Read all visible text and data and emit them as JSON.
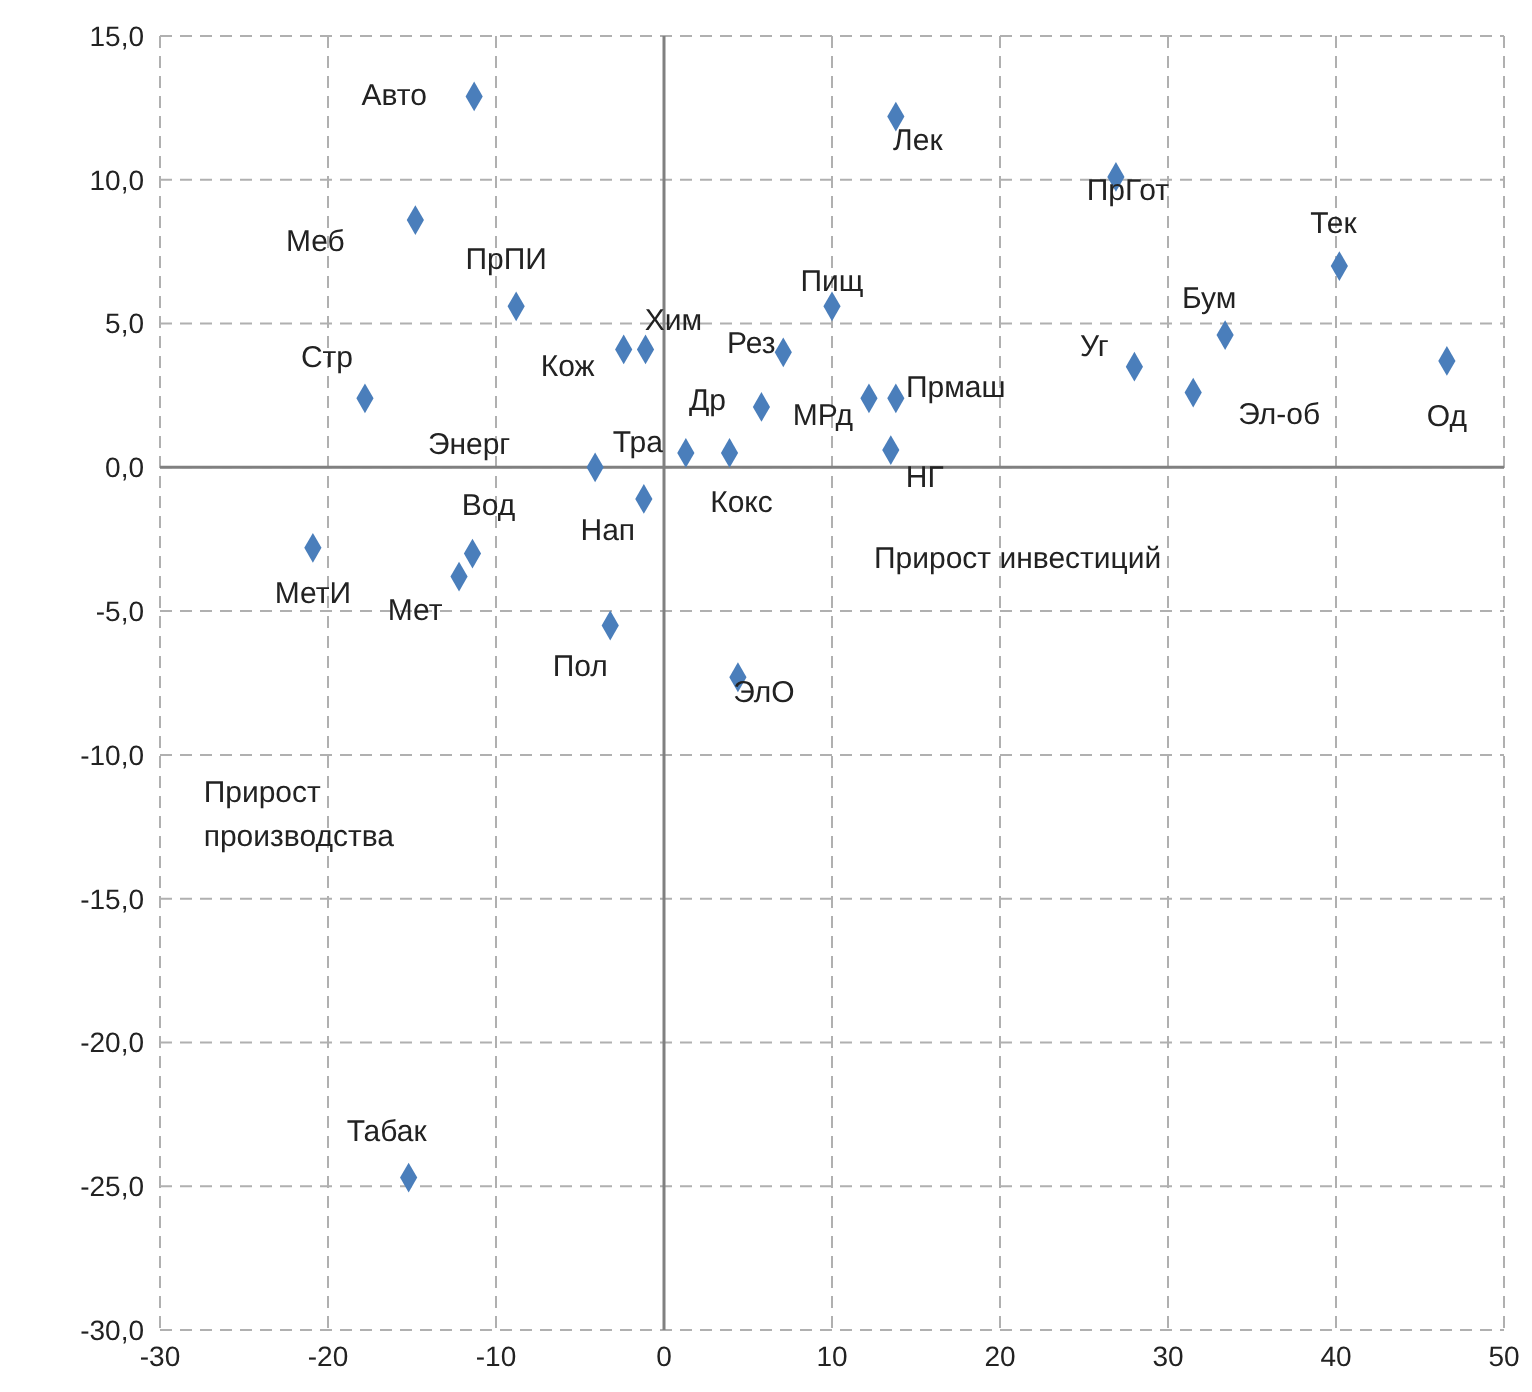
{
  "chart_data": {
    "type": "scatter",
    "xlabel": "Прирост инвестиций",
    "ylabel": "Прирост производства",
    "x": [
      -11.3,
      -14.8,
      -8.8,
      -17.8,
      -2.4,
      -1.1,
      -4.1,
      -1.2,
      1.3,
      3.9,
      5.8,
      7.1,
      10.0,
      12.2,
      13.8,
      13.5,
      4.4,
      -3.2,
      -11.4,
      -12.2,
      -20.9,
      13.8,
      26.9,
      40.2,
      33.4,
      28.0,
      31.5,
      46.6,
      -15.2
    ],
    "values": [
      12.9,
      8.6,
      5.6,
      2.4,
      4.1,
      4.1,
      0.0,
      -1.1,
      0.5,
      0.5,
      2.1,
      4.0,
      5.6,
      2.4,
      2.4,
      0.6,
      -7.3,
      -5.5,
      -3.0,
      -3.8,
      -2.8,
      12.2,
      10.1,
      7.0,
      4.6,
      3.5,
      2.6,
      3.7,
      -24.7
    ],
    "color": "#4a7ebb",
    "marker": "diamond",
    "grid": true,
    "xlim": [
      -30,
      50
    ],
    "xticks": [
      -30,
      -20,
      -10,
      0,
      10,
      20,
      30,
      40,
      50
    ],
    "ylim": [
      -30,
      15
    ],
    "yticks": [
      {
        "value": -30,
        "label": "-30,0"
      },
      {
        "value": -25,
        "label": "-25,0"
      },
      {
        "value": -20,
        "label": "-20,0"
      },
      {
        "value": -15,
        "label": "-15,0"
      },
      {
        "value": -10,
        "label": "-10,0"
      },
      {
        "value": -5,
        "label": "-5,0"
      },
      {
        "value": 0,
        "label": "0,0"
      },
      {
        "value": 5,
        "label": "5,0"
      },
      {
        "value": 10,
        "label": "10,0"
      },
      {
        "value": 15,
        "label": "15,0"
      }
    ],
    "annotations": [
      {
        "text": "Авто",
        "x": -11.3,
        "y": 12.9
      },
      {
        "text": "Меб",
        "x": -14.8,
        "y": 8.6
      },
      {
        "text": "ПрПИ",
        "x": -8.8,
        "y": 5.6
      },
      {
        "text": "Стр",
        "x": -17.8,
        "y": 2.4
      },
      {
        "text": "Кож",
        "x": -2.4,
        "y": 4.1
      },
      {
        "text": "Хим",
        "x": -1.1,
        "y": 4.1
      },
      {
        "text": "Энерг",
        "x": -4.1,
        "y": 0.0
      },
      {
        "text": "Нап",
        "x": -1.2,
        "y": -1.1
      },
      {
        "text": "Тра",
        "x": 1.3,
        "y": 0.5
      },
      {
        "text": "Кокс",
        "x": 3.9,
        "y": 0.5
      },
      {
        "text": "Др",
        "x": 5.8,
        "y": 2.1
      },
      {
        "text": "Рез",
        "x": 7.1,
        "y": 4.0
      },
      {
        "text": "Пищ",
        "x": 10.0,
        "y": 5.6
      },
      {
        "text": "МРд",
        "x": 12.2,
        "y": 2.4
      },
      {
        "text": "Прмаш",
        "x": 13.8,
        "y": 2.4
      },
      {
        "text": "НГ",
        "x": 13.5,
        "y": 0.6
      },
      {
        "text": "ЭлО",
        "x": 4.4,
        "y": -7.3
      },
      {
        "text": "Пол",
        "x": -3.2,
        "y": -5.5
      },
      {
        "text": "Вод",
        "x": -11.4,
        "y": -3.0
      },
      {
        "text": "Мет",
        "x": -12.2,
        "y": -3.8
      },
      {
        "text": "МетИ",
        "x": -20.9,
        "y": -2.8
      },
      {
        "text": "Лек",
        "x": 13.8,
        "y": 12.2
      },
      {
        "text": "ПрГот",
        "x": 26.9,
        "y": 10.1
      },
      {
        "text": "Тек",
        "x": 40.2,
        "y": 7.0
      },
      {
        "text": "Бум",
        "x": 33.4,
        "y": 4.6
      },
      {
        "text": "Уг",
        "x": 28.0,
        "y": 3.5
      },
      {
        "text": "Эл-об",
        "x": 31.5,
        "y": 2.6
      },
      {
        "text": "Од",
        "x": 46.6,
        "y": 3.7
      },
      {
        "text": "Табак",
        "x": -15.2,
        "y": -24.7
      }
    ]
  }
}
